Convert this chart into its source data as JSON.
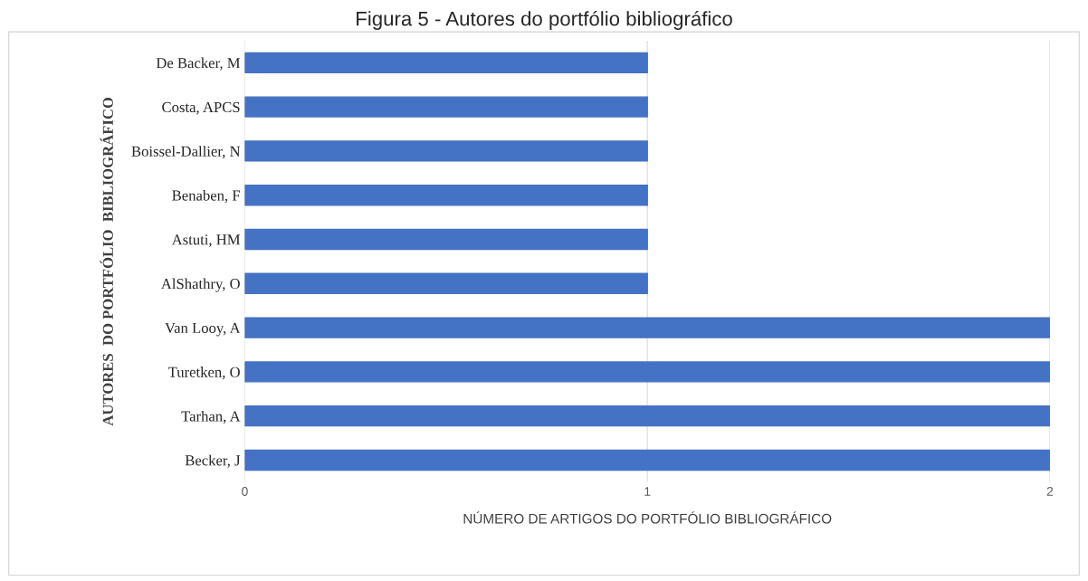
{
  "chart_data": {
    "type": "bar",
    "orientation": "horizontal",
    "title": "Figura 5 - Autores do portfólio bibliográfico",
    "xlabel": "NÚMERO DE ARTIGOS DO PORTFÓLIO BIBLIOGRÁFICO",
    "ylabel": "AUTORES  DO PORTFÓLIO  BIBLIOGRÁFICO",
    "categories": [
      "De Backer, M",
      "Costa, APCS",
      "Boissel-Dallier, N",
      "Benaben, F",
      "Astuti, HM",
      "AlShathry, O",
      "Van Looy, A",
      "Turetken, O",
      "Tarhan, A",
      "Becker, J"
    ],
    "values": [
      1,
      1,
      1,
      1,
      1,
      1,
      2,
      2,
      2,
      2
    ],
    "color": "#4472c4",
    "xlim": [
      0,
      2
    ],
    "xticks": [
      0,
      1,
      2
    ],
    "grid": "x"
  }
}
